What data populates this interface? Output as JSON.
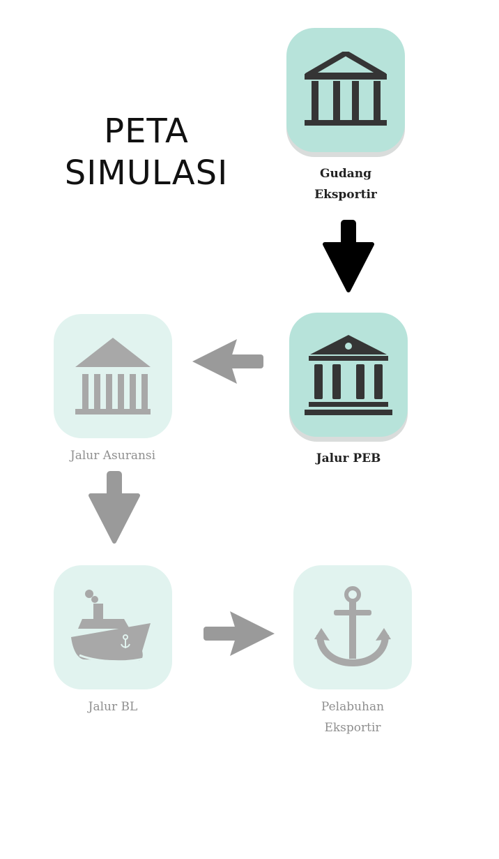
{
  "title": {
    "line1": "PETA",
    "line2": "SIMULASI"
  },
  "nodes": [
    {
      "id": "gudang",
      "line1": "Gudang",
      "line2": "Eksportir",
      "status": "active",
      "icon": "bank-icon"
    },
    {
      "id": "peb",
      "line1": "Jalur PEB",
      "line2": "",
      "status": "active",
      "icon": "bank-icon"
    },
    {
      "id": "asuransi",
      "line1": "Jalur Asuransi",
      "line2": "",
      "status": "inactive",
      "icon": "bank-icon"
    },
    {
      "id": "bl",
      "line1": "Jalur BL",
      "line2": "",
      "status": "inactive",
      "icon": "ship-icon"
    },
    {
      "id": "pelabuhan",
      "line1": "Pelabuhan",
      "line2": "Eksportir",
      "status": "inactive",
      "icon": "anchor-icon"
    }
  ],
  "colors": {
    "active_tile": "#b7e3da",
    "inactive_tile": "#e1f3ef",
    "active_icon": "#353535",
    "inactive_icon": "#a8a8a8",
    "active_arrow": "#000000",
    "inactive_arrow": "#9a9a9a"
  }
}
